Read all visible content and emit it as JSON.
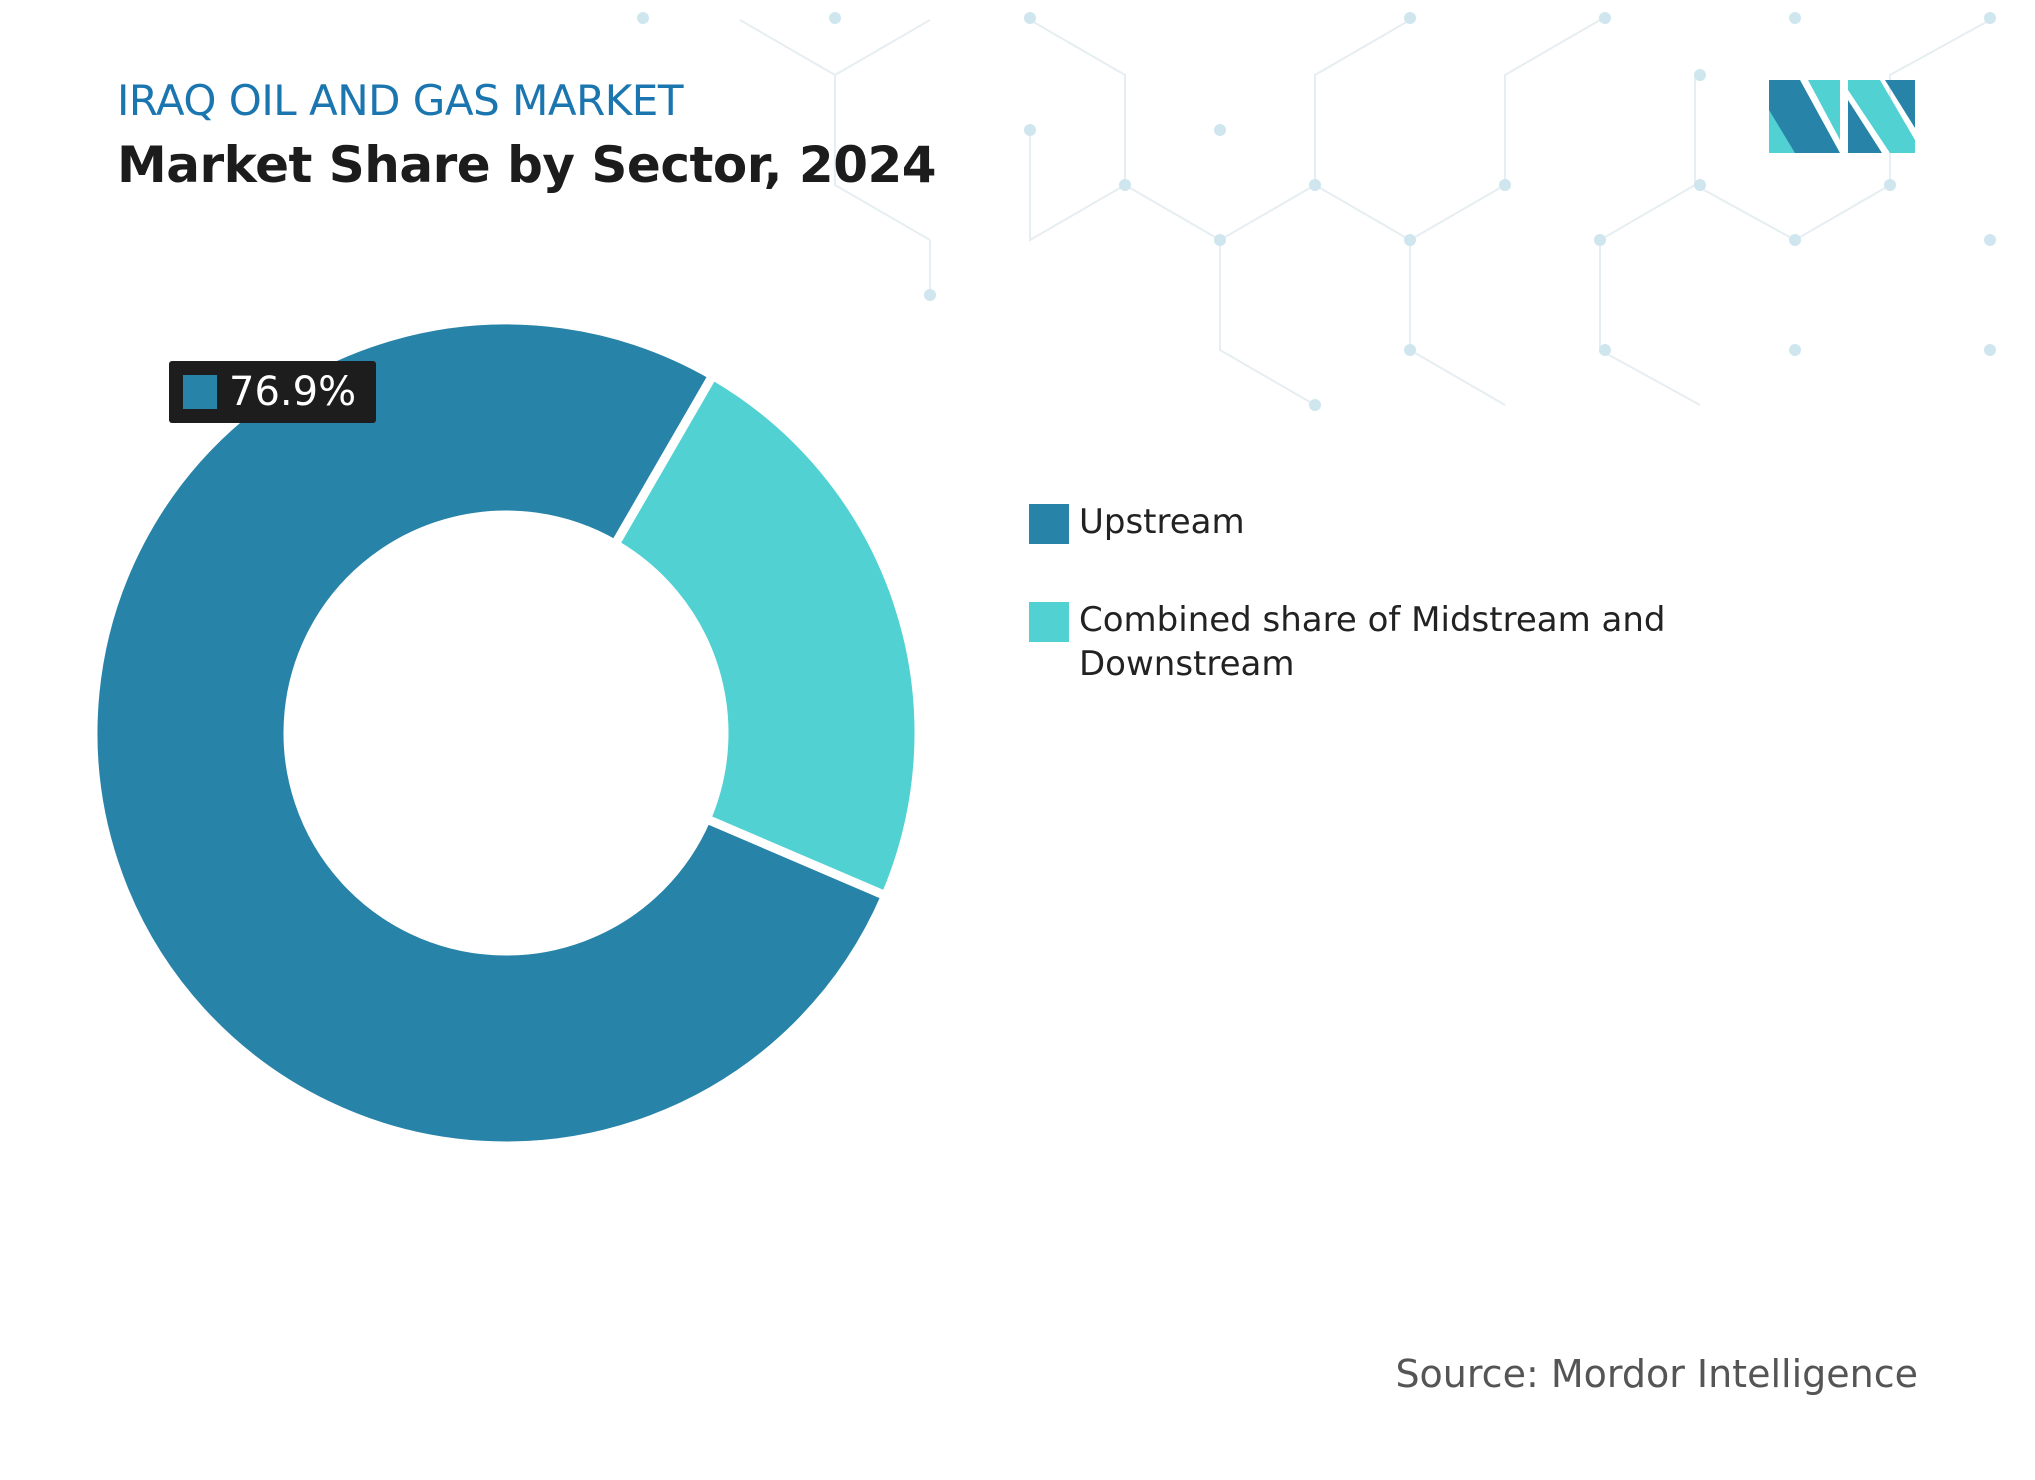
{
  "chart_data": {
    "type": "donut",
    "subtitle": "IRAQ OIL AND GAS MARKET",
    "title": "Market Share by Sector, 2024",
    "categories": [
      "Upstream",
      "Combined share of Midstream and Downstream"
    ],
    "values": [
      76.9,
      23.1
    ],
    "value_labels": [
      "76.9%",
      null
    ],
    "colors": [
      "#2783a8",
      "#52d1d3"
    ],
    "source": "Source: Mordor Intelligence"
  }
}
